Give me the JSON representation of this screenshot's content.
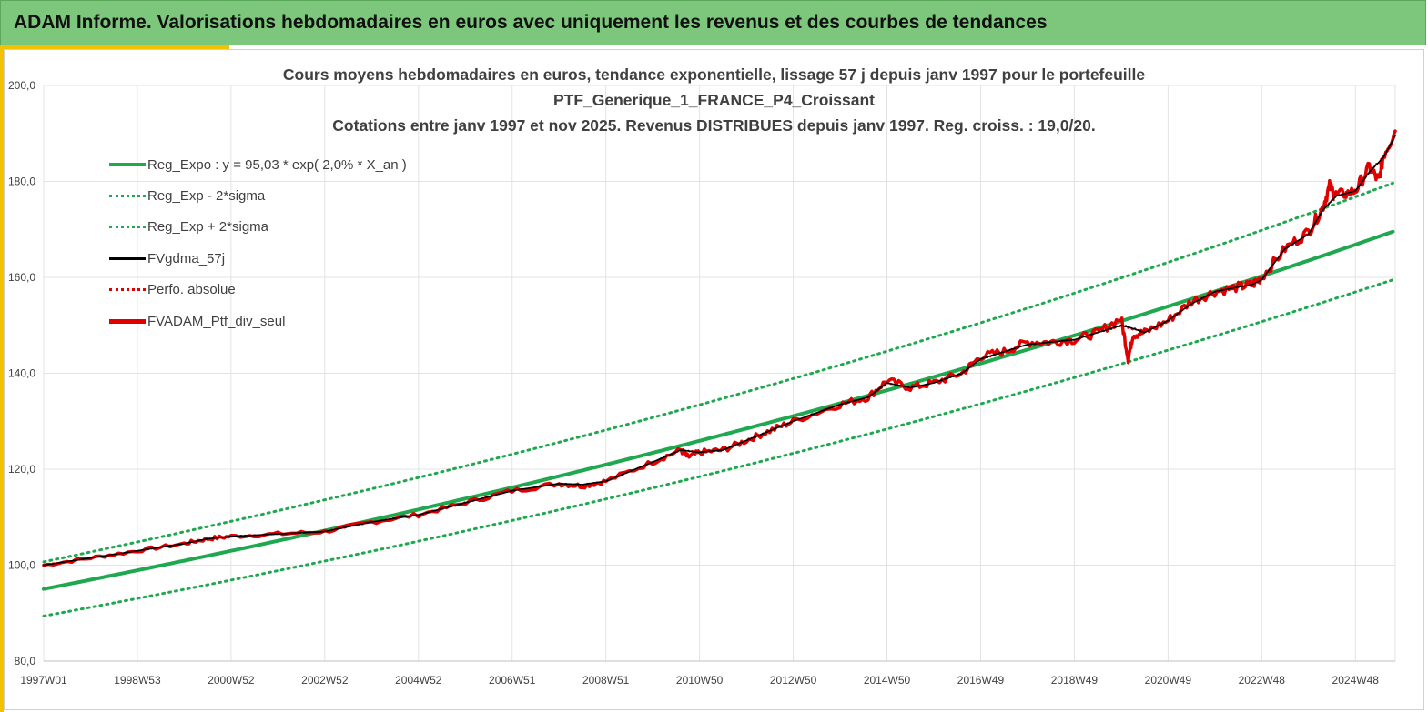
{
  "banner": {
    "title": "ADAM Informe. Valorisations hebdomadaires en euros avec uniquement les revenus et des courbes de tendances"
  },
  "chart": {
    "title_lines": [
      "Cours moyens hebdomadaires  en euros, tendance exponentielle, lissage 57 j depuis janv 1997 pour le portefeuille",
      "PTF_Generique_1_FRANCE_P4_Croissant",
      "Cotations  entre janv 1997 et nov 2025. Revenus DISTRIBUES depuis janv 1997. Reg. croiss. : 19,0/20."
    ],
    "legend": [
      {
        "label": "Reg_Expo : y = 95,03 * exp( 2,0% *  X_an )",
        "style": "solid-green"
      },
      {
        "label": "Reg_Exp - 2*sigma",
        "style": "dot-green"
      },
      {
        "label": "Reg_Exp + 2*sigma",
        "style": "dot-green"
      },
      {
        "label": "FVgdma_57j",
        "style": "solid-black"
      },
      {
        "label": "Perfo. absolue",
        "style": "dot-red"
      },
      {
        "label": "FVADAM_Ptf_div_seul",
        "style": "solid-red"
      }
    ]
  },
  "chart_data": {
    "type": "line",
    "title": "Cours moyens hebdomadaires en euros, tendance exponentielle, lissage 57 j depuis janv 1997 pour le portefeuille PTF_Generique_1_FRANCE_P4_Croissant",
    "xlabel": "",
    "ylabel": "",
    "ylim": [
      80,
      200
    ],
    "xlim": [
      1997.0,
      2025.85
    ],
    "yticks": [
      "80,0",
      "100,0",
      "120,0",
      "140,0",
      "160,0",
      "180,0",
      "200,0"
    ],
    "ytick_values": [
      80,
      100,
      120,
      140,
      160,
      180,
      200
    ],
    "xticks": [
      "1997W01",
      "1998W53",
      "2000W52",
      "2002W52",
      "2004W52",
      "2006W51",
      "2008W51",
      "2010W50",
      "2012W50",
      "2014W50",
      "2016W49",
      "2018W49",
      "2020W49",
      "2022W48",
      "2024W48"
    ],
    "xtick_values": [
      1997.0,
      1999.0,
      2001.0,
      2003.0,
      2005.0,
      2007.0,
      2009.0,
      2011.0,
      2013.0,
      2015.0,
      2017.0,
      2019.0,
      2021.0,
      2023.0,
      2025.0
    ],
    "grid": true,
    "series": [
      {
        "name": "Reg_Expo : y = 95,03 * exp( 2,0% *  X_an )",
        "formula": {
          "a": 95.03,
          "rate": 0.0201
        }
      },
      {
        "name": "Reg_Exp - 2*sigma",
        "formula": {
          "a": 89.4,
          "rate": 0.0201
        }
      },
      {
        "name": "Reg_Exp + 2*sigma",
        "formula": {
          "a": 100.7,
          "rate": 0.0201
        }
      },
      {
        "name": "FVgdma_57j",
        "x": [
          1997.0,
          1998.0,
          1999.0,
          2000.0,
          2000.5,
          2001.0,
          2002.0,
          2003.0,
          2004.0,
          2005.0,
          2006.0,
          2007.0,
          2008.0,
          2008.5,
          2009.0,
          2010.0,
          2010.6,
          2011.0,
          2011.5,
          2012.0,
          2012.5,
          2013.0,
          2014.0,
          2014.6,
          2015.0,
          2015.5,
          2016.0,
          2016.6,
          2017.0,
          2017.5,
          2018.0,
          2018.5,
          2019.0,
          2019.5,
          2020.0,
          2020.2,
          2020.5,
          2021.0,
          2021.5,
          2022.0,
          2022.5,
          2022.8,
          2023.0,
          2023.5,
          2024.0,
          2024.3,
          2024.6,
          2025.0,
          2025.3,
          2025.6,
          2025.85
        ],
        "y": [
          100.0,
          101.5,
          103.0,
          104.5,
          105.5,
          106.0,
          106.5,
          107.0,
          109.0,
          110.5,
          113.0,
          115.5,
          117.0,
          116.8,
          117.5,
          121.5,
          124.0,
          123.5,
          124.0,
          126.0,
          128.0,
          130.0,
          133.5,
          135.0,
          138.0,
          137.0,
          138.0,
          140.0,
          143.0,
          144.5,
          146.0,
          146.5,
          147.0,
          148.5,
          150.0,
          149.5,
          148.5,
          151.0,
          154.5,
          157.0,
          158.0,
          158.5,
          159.5,
          166.0,
          169.0,
          174.0,
          177.0,
          178.0,
          182.0,
          185.0,
          189.5
        ]
      },
      {
        "name": "Perfo. absolue",
        "x": [
          1997.0,
          1998.0,
          1999.0,
          2000.0,
          2000.5,
          2001.0,
          2002.0,
          2003.0,
          2004.0,
          2005.0,
          2006.0,
          2007.0,
          2008.0,
          2008.5,
          2009.0,
          2010.0,
          2010.6,
          2011.0,
          2011.5,
          2012.0,
          2012.5,
          2013.0,
          2014.0,
          2014.6,
          2015.0,
          2015.5,
          2016.0,
          2016.6,
          2017.0,
          2017.5,
          2018.0,
          2018.5,
          2019.0,
          2019.5,
          2020.0,
          2020.2,
          2020.5,
          2021.0,
          2021.5,
          2022.0,
          2022.5,
          2022.8,
          2023.0,
          2023.5,
          2024.0,
          2024.3,
          2024.6,
          2025.0,
          2025.3,
          2025.6,
          2025.85
        ],
        "y": [
          100.0,
          101.5,
          103.0,
          104.5,
          105.5,
          106.0,
          106.5,
          107.0,
          109.0,
          110.5,
          113.0,
          115.5,
          117.0,
          116.8,
          117.5,
          121.5,
          124.0,
          123.5,
          124.0,
          126.0,
          128.0,
          130.0,
          133.5,
          135.0,
          138.0,
          137.0,
          138.0,
          140.0,
          143.0,
          144.5,
          146.0,
          146.5,
          147.0,
          148.5,
          150.0,
          149.5,
          148.5,
          151.0,
          154.5,
          157.0,
          158.0,
          158.5,
          159.5,
          166.0,
          169.0,
          174.0,
          177.0,
          178.0,
          182.0,
          185.0,
          189.5
        ]
      },
      {
        "name": "FVADAM_Ptf_div_seul",
        "x": [
          1997.0,
          1998.0,
          1999.0,
          2000.0,
          2000.5,
          2001.0,
          2002.0,
          2003.0,
          2004.0,
          2005.0,
          2006.0,
          2007.0,
          2008.0,
          2008.5,
          2009.0,
          2010.0,
          2010.6,
          2010.75,
          2011.0,
          2011.5,
          2012.0,
          2012.5,
          2013.0,
          2014.0,
          2014.6,
          2015.0,
          2015.5,
          2016.0,
          2016.6,
          2017.0,
          2017.5,
          2018.0,
          2018.5,
          2019.0,
          2019.5,
          2020.0,
          2020.15,
          2020.25,
          2020.5,
          2021.0,
          2021.5,
          2022.0,
          2022.5,
          2022.8,
          2023.0,
          2023.5,
          2024.0,
          2024.3,
          2024.45,
          2024.6,
          2025.0,
          2025.3,
          2025.5,
          2025.6,
          2025.85
        ],
        "y": [
          100.0,
          101.5,
          103.0,
          104.5,
          105.5,
          106.0,
          106.5,
          107.0,
          109.0,
          110.5,
          113.0,
          115.5,
          117.0,
          116.5,
          117.5,
          121.5,
          124.0,
          122.5,
          123.5,
          124.0,
          126.0,
          128.0,
          130.0,
          133.5,
          135.0,
          138.5,
          137.0,
          138.0,
          140.0,
          143.5,
          144.5,
          146.5,
          146.5,
          147.0,
          148.5,
          151.5,
          143.0,
          148.0,
          148.5,
          151.0,
          155.0,
          157.0,
          158.0,
          158.5,
          160.0,
          166.0,
          169.5,
          174.5,
          179.0,
          177.0,
          178.0,
          183.0,
          180.0,
          185.5,
          190.5
        ]
      }
    ]
  }
}
